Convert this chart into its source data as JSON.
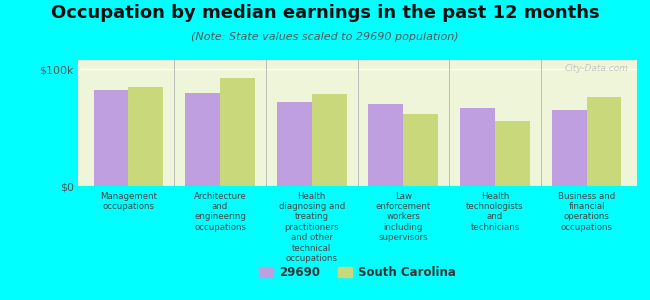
{
  "title": "Occupation by median earnings in the past 12 months",
  "subtitle": "(Note: State values scaled to 29690 population)",
  "categories": [
    "Management\noccupations",
    "Architecture\nand\nengineering\noccupations",
    "Health\ndiagnosing and\ntreating\npractitioners\nand other\ntechnical\noccupations",
    "Law\nenforcement\nworkers\nincluding\nsupervisors",
    "Health\ntechnologists\nand\ntechnicians",
    "Business and\nfinancial\noperations\noccupations"
  ],
  "values_29690": [
    82000,
    80000,
    72000,
    70000,
    67000,
    65000
  ],
  "values_sc": [
    85000,
    93000,
    79000,
    62000,
    56000,
    76000
  ],
  "ylim": [
    0,
    108000
  ],
  "ytick_labels": [
    "$0",
    "$100k"
  ],
  "ytick_vals": [
    0,
    100000
  ],
  "bar_color_29690": "#bf9fdf",
  "bar_color_sc": "#c8d87a",
  "background_color": "#00ffff",
  "plot_bg_color": "#eef5d8",
  "legend_label_29690": "29690",
  "legend_label_sc": "South Carolina",
  "watermark": "City-Data.com",
  "bar_width": 0.38,
  "title_fontsize": 13,
  "subtitle_fontsize": 8
}
